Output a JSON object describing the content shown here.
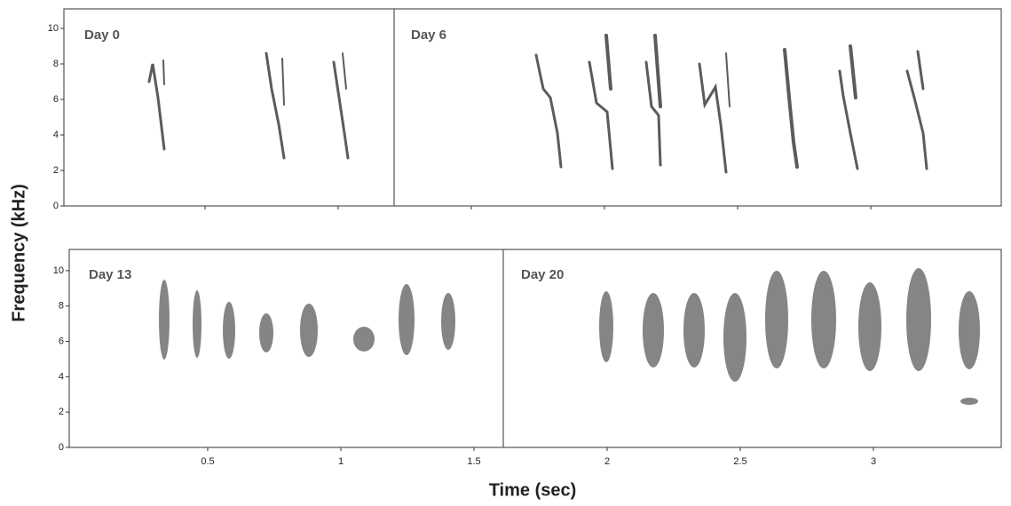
{
  "chart_data": [
    {
      "type": "spectrogram",
      "panels": [
        "Day 0",
        "Day 6"
      ],
      "ylabel": "Frequency (kHz)",
      "xlim": [
        -0.03,
        3.49
      ],
      "ylim": [
        0,
        11.1
      ],
      "yticks": [
        0,
        2,
        4,
        6,
        8,
        10
      ],
      "xticks": [
        0.5,
        1,
        1.5,
        2,
        2.5,
        3
      ],
      "show_xtick_labels": false
    },
    {
      "type": "spectrogram",
      "panels": [
        "Day 13",
        "Day 20"
      ],
      "xlabel": "Time (sec)",
      "xlim": [
        -0.02,
        3.48
      ],
      "ylim": [
        0,
        11.2
      ],
      "yticks": [
        0,
        2,
        4,
        6,
        8,
        10
      ],
      "xticks": [
        0.5,
        1,
        1.5,
        2,
        2.5,
        3
      ],
      "show_xtick_labels": true
    }
  ]
}
